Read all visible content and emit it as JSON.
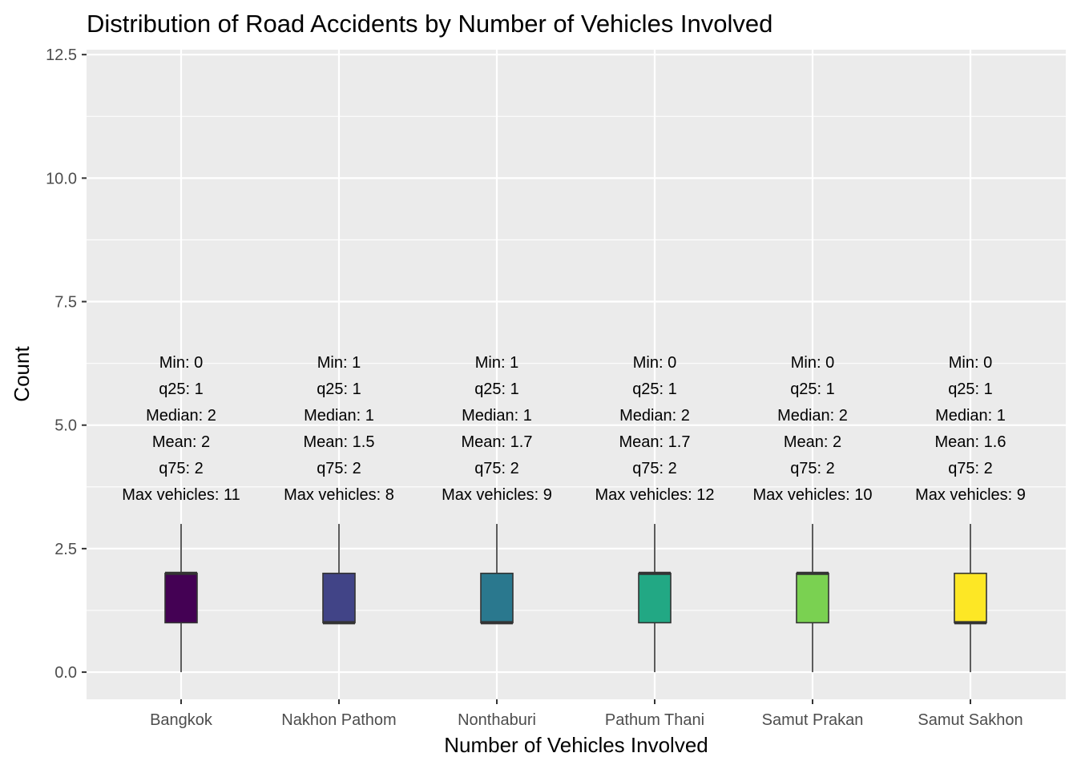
{
  "chart_data": {
    "type": "boxplot",
    "title": "Distribution of Road Accidents by Number of Vehicles Involved",
    "xlabel": "Number of Vehicles Involved",
    "ylabel": "Count",
    "ylim": [
      -0.55,
      12.6
    ],
    "yticks": [
      0.0,
      2.5,
      5.0,
      7.5,
      10.0,
      12.5
    ],
    "ytick_labels": [
      "0.0",
      "2.5",
      "5.0",
      "7.5",
      "10.0",
      "12.5"
    ],
    "grid": true,
    "legend": "none",
    "categories": [
      "Bangkok",
      "Nakhon Pathom",
      "Nonthaburi",
      "Pathum Thani",
      "Samut Prakan",
      "Samut Sakhon"
    ],
    "boxes": [
      {
        "category": "Bangkok",
        "whisker_low": 0,
        "q1": 1,
        "median": 2,
        "q3": 2,
        "whisker_high": 3,
        "color": "#440154",
        "labels": [
          "Min: 0",
          "q25: 1",
          "Median: 2",
          "Mean: 2",
          "q75: 2",
          "Max vehicles: 11"
        ]
      },
      {
        "category": "Nakhon Pathom",
        "whisker_low": 1,
        "q1": 1,
        "median": 1,
        "q3": 2,
        "whisker_high": 3,
        "color": "#414487",
        "labels": [
          "Min: 1",
          "q25: 1",
          "Median: 1",
          "Mean: 1.5",
          "q75: 2",
          "Max vehicles: 8"
        ]
      },
      {
        "category": "Nonthaburi",
        "whisker_low": 1,
        "q1": 1,
        "median": 1,
        "q3": 2,
        "whisker_high": 3,
        "color": "#2A788E",
        "labels": [
          "Min: 1",
          "q25: 1",
          "Median: 1",
          "Mean: 1.7",
          "q75: 2",
          "Max vehicles: 9"
        ]
      },
      {
        "category": "Pathum Thani",
        "whisker_low": 0,
        "q1": 1,
        "median": 2,
        "q3": 2,
        "whisker_high": 3,
        "color": "#22A884",
        "labels": [
          "Min: 0",
          "q25: 1",
          "Median: 2",
          "Mean: 1.7",
          "q75: 2",
          "Max vehicles: 12"
        ]
      },
      {
        "category": "Samut Prakan",
        "whisker_low": 0,
        "q1": 1,
        "median": 2,
        "q3": 2,
        "whisker_high": 3,
        "color": "#7AD151",
        "labels": [
          "Min: 0",
          "q25: 1",
          "Median: 2",
          "Mean: 2",
          "q75: 2",
          "Max vehicles: 10"
        ]
      },
      {
        "category": "Samut Sakhon",
        "whisker_low": 0,
        "q1": 1,
        "median": 1,
        "q3": 2,
        "whisker_high": 3,
        "color": "#FDE725",
        "labels": [
          "Min: 0",
          "q25: 1",
          "Median: 1",
          "Mean: 1.6",
          "q75: 2",
          "Max vehicles: 9"
        ]
      }
    ],
    "colors": {
      "panel": "#EBEBEB",
      "grid": "#FFFFFF",
      "outline": "#333333",
      "tick_text": "#4D4D4D"
    }
  }
}
